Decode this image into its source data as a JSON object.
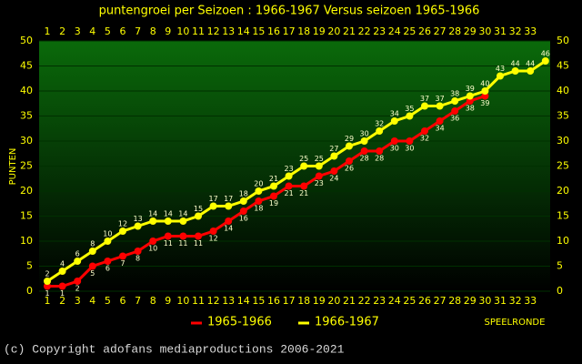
{
  "chart_data": {
    "type": "line",
    "title": "puntengroei per Seizoen : 1966-1967 Versus seizoen 1965-1966",
    "y_label": "PUNTEN",
    "x_label": "SPEELRONDE",
    "categories": [
      "1",
      "2",
      "3",
      "4",
      "5",
      "6",
      "7",
      "8",
      "9",
      "10",
      "11",
      "12",
      "13",
      "14",
      "15",
      "16",
      "17",
      "18",
      "19",
      "20",
      "21",
      "22",
      "23",
      "24",
      "25",
      "26",
      "27",
      "28",
      "29",
      "30",
      "31",
      "32",
      "33",
      null
    ],
    "series": [
      {
        "name": "1965-1966",
        "color": "#ff0000",
        "values": [
          1,
          1,
          2,
          5,
          6,
          7,
          8,
          10,
          11,
          11,
          11,
          12,
          14,
          16,
          18,
          19,
          21,
          21,
          23,
          24,
          26,
          28,
          28,
          30,
          30,
          32,
          34,
          36,
          38,
          39,
          null,
          null,
          null,
          null
        ]
      },
      {
        "name": "1966-1967",
        "color": "#ffff00",
        "values": [
          2,
          4,
          6,
          8,
          10,
          12,
          13,
          14,
          14,
          14,
          15,
          17,
          17,
          18,
          20,
          21,
          23,
          25,
          25,
          27,
          29,
          30,
          32,
          34,
          35,
          37,
          37,
          38,
          39,
          40,
          43,
          44,
          44,
          46
        ]
      }
    ],
    "ylim": [
      0,
      50
    ],
    "yticks": [
      0,
      5,
      10,
      15,
      20,
      25,
      30,
      35,
      40,
      45,
      50
    ],
    "grid": true,
    "footer": "(c) Copyright adofans mediaproductions 2006-2021"
  }
}
